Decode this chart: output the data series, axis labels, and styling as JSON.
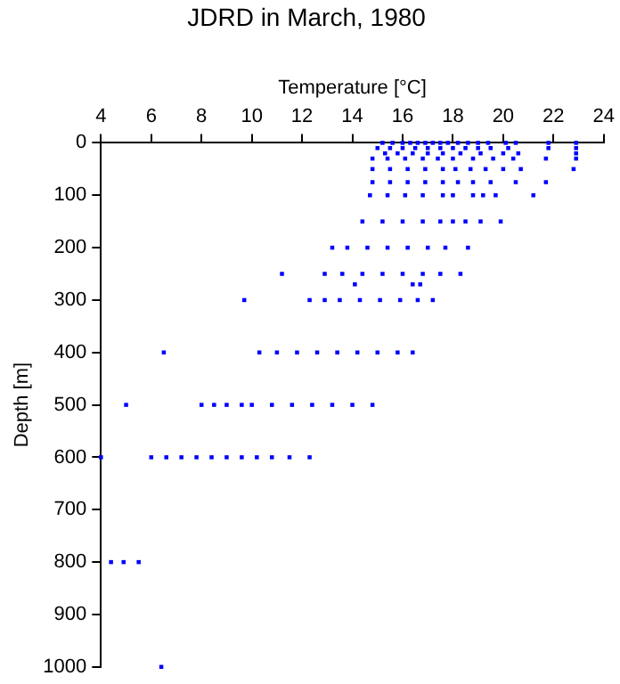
{
  "chart_data": {
    "type": "scatter",
    "title": "JDRD in March, 1980",
    "xlabel": "Temperature [°C]",
    "ylabel": "Depth [m]",
    "xlim": [
      4,
      24
    ],
    "xticks": [
      4,
      6,
      8,
      10,
      12,
      14,
      16,
      18,
      20,
      22,
      24
    ],
    "ylim": [
      1000,
      0
    ],
    "yticks": [
      0,
      100,
      200,
      300,
      400,
      500,
      600,
      700,
      800,
      900,
      1000
    ],
    "grid": false,
    "legend": false,
    "marker": "square",
    "series": [
      {
        "color": "#0000ff",
        "x": [
          15.2,
          15.6,
          16.0,
          16.3,
          16.6,
          16.9,
          17.2,
          17.5,
          17.8,
          18.2,
          18.6,
          19.0,
          19.4,
          20.1,
          20.5,
          21.8,
          22.9,
          15.0,
          15.5,
          16.0,
          16.5,
          17.0,
          17.5,
          18.0,
          18.5,
          19.0,
          19.5,
          20.2,
          21.8,
          22.9,
          15.3,
          15.8,
          16.4,
          17.0,
          17.6,
          18.3,
          19.1,
          20.0,
          20.6,
          22.9,
          14.8,
          15.4,
          16.1,
          16.8,
          17.4,
          18.0,
          18.8,
          19.6,
          20.4,
          21.7,
          22.9,
          14.8,
          15.5,
          16.2,
          16.9,
          17.6,
          18.1,
          18.7,
          19.3,
          20.0,
          20.7,
          22.8,
          14.8,
          15.5,
          16.2,
          16.9,
          17.6,
          18.2,
          18.8,
          19.5,
          20.5,
          21.7,
          14.7,
          15.4,
          16.1,
          16.8,
          17.6,
          18.0,
          18.8,
          19.2,
          19.7,
          21.2,
          14.4,
          15.2,
          16.0,
          16.8,
          17.5,
          18.0,
          18.5,
          19.1,
          19.9,
          13.2,
          13.8,
          14.6,
          15.4,
          16.2,
          17.0,
          17.7,
          18.6,
          11.2,
          12.9,
          13.6,
          14.4,
          15.2,
          16.0,
          16.8,
          17.5,
          18.3,
          14.1,
          16.4,
          16.7,
          9.7,
          12.3,
          12.9,
          13.5,
          14.3,
          15.1,
          15.9,
          16.6,
          17.2,
          6.5,
          10.3,
          11.0,
          11.8,
          12.6,
          13.4,
          14.2,
          15.0,
          15.8,
          16.4,
          5.0,
          8.0,
          8.5,
          9.0,
          9.6,
          10.0,
          10.8,
          11.6,
          12.4,
          13.2,
          14.0,
          14.8,
          4.0,
          6.0,
          6.6,
          7.2,
          7.8,
          8.4,
          9.0,
          9.6,
          10.2,
          10.8,
          11.5,
          12.3,
          4.4,
          4.9,
          5.5,
          6.4
        ],
        "values": [
          0,
          0,
          0,
          0,
          0,
          0,
          0,
          0,
          0,
          0,
          0,
          0,
          0,
          0,
          0,
          0,
          0,
          10,
          10,
          10,
          10,
          10,
          10,
          10,
          10,
          10,
          10,
          10,
          10,
          10,
          20,
          20,
          20,
          20,
          20,
          20,
          20,
          20,
          20,
          20,
          30,
          30,
          30,
          30,
          30,
          30,
          30,
          30,
          30,
          30,
          30,
          50,
          50,
          50,
          50,
          50,
          50,
          50,
          50,
          50,
          50,
          50,
          75,
          75,
          75,
          75,
          75,
          75,
          75,
          75,
          75,
          75,
          100,
          100,
          100,
          100,
          100,
          100,
          100,
          100,
          100,
          100,
          150,
          150,
          150,
          150,
          150,
          150,
          150,
          150,
          150,
          200,
          200,
          200,
          200,
          200,
          200,
          200,
          200,
          250,
          250,
          250,
          250,
          250,
          250,
          250,
          250,
          250,
          270,
          270,
          270,
          300,
          300,
          300,
          300,
          300,
          300,
          300,
          300,
          300,
          400,
          400,
          400,
          400,
          400,
          400,
          400,
          400,
          400,
          400,
          500,
          500,
          500,
          500,
          500,
          500,
          500,
          500,
          500,
          500,
          500,
          500,
          600,
          600,
          600,
          600,
          600,
          600,
          600,
          600,
          600,
          600,
          600,
          600,
          800,
          800,
          800,
          1000
        ]
      }
    ]
  }
}
